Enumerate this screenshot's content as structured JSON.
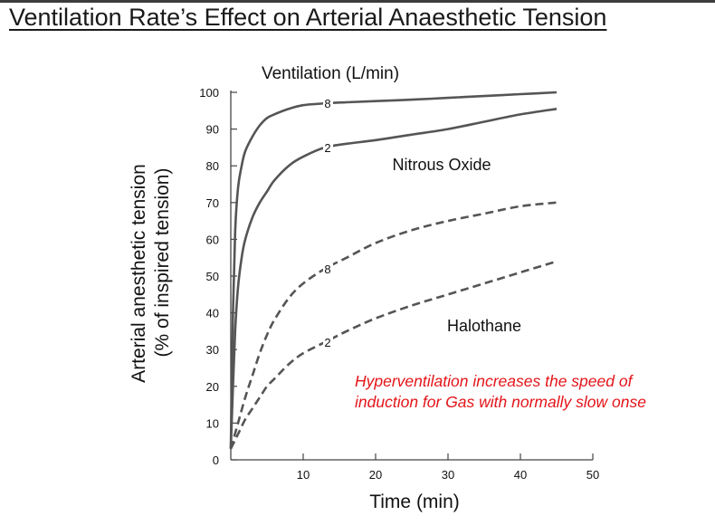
{
  "slide": {
    "title": "Ventilation Rate’s Effect on Arterial Anaesthetic Tension",
    "annotation_line1": "Hyperventilation increases the speed of",
    "annotation_line2": "induction for Gas with normally slow onse"
  },
  "chart_data": {
    "type": "line",
    "title": "Ventilation (L/min)",
    "xlabel": "Time (min)",
    "ylabel_line1": "Arterial anesthetic tension",
    "ylabel_line2": "(% of inspired tension)",
    "xlim": [
      0,
      50
    ],
    "ylim": [
      0,
      100
    ],
    "x_ticks": [
      10,
      20,
      30,
      40,
      50
    ],
    "y_ticks": [
      0,
      10,
      20,
      30,
      40,
      50,
      60,
      70,
      80,
      90,
      100
    ],
    "grid": false,
    "colors": {
      "curve": "#555555",
      "annotation": "#e3151a"
    },
    "group_labels": [
      "Nitrous Oxide",
      "Halothane"
    ],
    "series": [
      {
        "name": "8",
        "group": "Nitrous Oxide",
        "style": "solid",
        "x": [
          0,
          0.3,
          0.6,
          1,
          1.5,
          2,
          3,
          4,
          5,
          6,
          8,
          10,
          13,
          16,
          20,
          25,
          30,
          35,
          40,
          45
        ],
        "y": [
          3,
          40,
          62,
          74,
          80,
          84,
          88,
          91,
          93,
          94,
          95.5,
          96.5,
          97,
          97.3,
          97.6,
          98,
          98.5,
          99,
          99.5,
          100
        ]
      },
      {
        "name": "2",
        "group": "Nitrous Oxide",
        "style": "solid",
        "x": [
          0,
          0.3,
          0.6,
          1,
          1.5,
          2,
          3,
          4,
          5,
          6,
          8,
          10,
          13,
          16,
          20,
          25,
          30,
          35,
          40,
          45
        ],
        "y": [
          3,
          20,
          35,
          47,
          55,
          60,
          66,
          70,
          73,
          76,
          80,
          82.5,
          85,
          86,
          87,
          88.5,
          90,
          92,
          94,
          95.5
        ]
      },
      {
        "name": "8",
        "group": "Halothane",
        "style": "dashed",
        "x": [
          0,
          1,
          2,
          3,
          4,
          5,
          6,
          8,
          10,
          13,
          16,
          20,
          25,
          30,
          35,
          40,
          45
        ],
        "y": [
          3,
          10,
          17,
          23,
          29,
          34,
          38,
          44,
          48,
          52,
          55,
          59,
          62.5,
          65,
          67,
          69,
          70
        ]
      },
      {
        "name": "2",
        "group": "Halothane",
        "style": "dashed",
        "x": [
          0,
          1,
          2,
          3,
          4,
          5,
          6,
          8,
          10,
          13,
          16,
          20,
          25,
          30,
          35,
          40,
          45
        ],
        "y": [
          3,
          7,
          11,
          14,
          17,
          20,
          22,
          26,
          29,
          32,
          35,
          38.5,
          42,
          45,
          48,
          51,
          54
        ]
      }
    ]
  }
}
